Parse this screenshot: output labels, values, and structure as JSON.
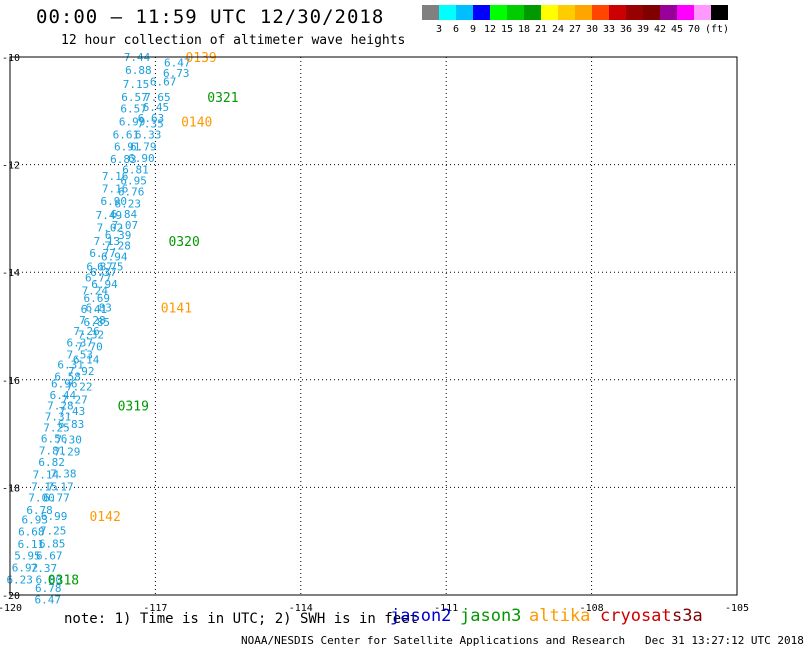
{
  "header": {
    "title": "00:00 – 11:59 UTC 12/30/2018",
    "subtitle": "12 hour collection of altimeter wave heights"
  },
  "colorbar": {
    "colors": [
      "#808080",
      "#00ffff",
      "#00bfff",
      "#0000ff",
      "#00ff00",
      "#00cc00",
      "#009900",
      "#ffff00",
      "#ffcc00",
      "#ffa500",
      "#ff4500",
      "#cc0000",
      "#990000",
      "#800000",
      "#990099",
      "#ff00ff",
      "#ff99ff",
      "#000000"
    ],
    "labels": [
      "3",
      "6",
      "9",
      "12",
      "15",
      "18",
      "21",
      "24",
      "27",
      "30",
      "33",
      "36",
      "39",
      "42",
      "45",
      "70"
    ],
    "unit": "(ft)"
  },
  "note": "note: 1) Time is in UTC; 2) SWH is in feet",
  "satellites": [
    {
      "name": "jason2",
      "color": "#0000cc"
    },
    {
      "name": "jason3",
      "color": "#009900"
    },
    {
      "name": "altika",
      "color": "#ff9900"
    },
    {
      "name": "cryosat",
      "color": "#cc0000"
    },
    {
      "name": "s3a",
      "color": "#800000"
    }
  ],
  "footer": "NOAA/NESDIS Center for Satellite Applications and Research   Dec 31 13:27:12 UTC 2018",
  "chart_data": {
    "type": "scatter",
    "xlim": [
      -120,
      -105
    ],
    "ylim": [
      -20,
      -10
    ],
    "x_ticks": [
      "-120",
      "-117",
      "-114",
      "-111",
      "-108",
      "-105"
    ],
    "x_tick_values": [
      -120,
      -117,
      -114,
      -111,
      -108,
      -105
    ],
    "y_ticks": [
      "-10",
      "-12",
      "-14",
      "-16",
      "-18",
      "-20"
    ],
    "y_tick_values": [
      -10,
      -12,
      -14,
      -16,
      -18,
      -20
    ],
    "grid": true,
    "point_color": "#1a9fdd",
    "points": [
      {
        "x": -117.38,
        "y": -10.0,
        "label": "7.44"
      },
      {
        "x": -116.55,
        "y": -10.1,
        "label": "6.47"
      },
      {
        "x": -117.35,
        "y": -10.24,
        "label": "6.88"
      },
      {
        "x": -116.57,
        "y": -10.3,
        "label": "6.73"
      },
      {
        "x": -116.84,
        "y": -10.46,
        "label": "6.67"
      },
      {
        "x": -117.4,
        "y": -10.5,
        "label": "7.15"
      },
      {
        "x": -117.43,
        "y": -10.74,
        "label": "6.57"
      },
      {
        "x": -116.96,
        "y": -10.74,
        "label": "7.65"
      },
      {
        "x": -117.45,
        "y": -10.96,
        "label": "6.57"
      },
      {
        "x": -116.99,
        "y": -10.93,
        "label": "6.45"
      },
      {
        "x": -117.09,
        "y": -11.13,
        "label": "6.63"
      },
      {
        "x": -117.48,
        "y": -11.2,
        "label": "6.99"
      },
      {
        "x": -117.1,
        "y": -11.24,
        "label": "7.35"
      },
      {
        "x": -117.61,
        "y": -11.44,
        "label": "6.61"
      },
      {
        "x": -117.15,
        "y": -11.44,
        "label": "6.33"
      },
      {
        "x": -117.58,
        "y": -11.66,
        "label": "6.91"
      },
      {
        "x": -117.25,
        "y": -11.66,
        "label": "6.79"
      },
      {
        "x": -117.66,
        "y": -11.9,
        "label": "6.83"
      },
      {
        "x": -117.29,
        "y": -11.88,
        "label": "6.90"
      },
      {
        "x": -117.41,
        "y": -12.09,
        "label": "6.81"
      },
      {
        "x": -117.83,
        "y": -12.21,
        "label": "7.16"
      },
      {
        "x": -117.45,
        "y": -12.3,
        "label": "6.95"
      },
      {
        "x": -117.83,
        "y": -12.44,
        "label": "7.16"
      },
      {
        "x": -117.5,
        "y": -12.5,
        "label": "6.76"
      },
      {
        "x": -117.86,
        "y": -12.68,
        "label": "6.90"
      },
      {
        "x": -117.57,
        "y": -12.72,
        "label": "6.23"
      },
      {
        "x": -117.96,
        "y": -12.94,
        "label": "7.49"
      },
      {
        "x": -117.65,
        "y": -12.92,
        "label": "6.84"
      },
      {
        "x": -117.63,
        "y": -13.12,
        "label": "7.07"
      },
      {
        "x": -117.94,
        "y": -13.17,
        "label": "7.02"
      },
      {
        "x": -117.77,
        "y": -13.31,
        "label": "6.39"
      },
      {
        "x": -118.0,
        "y": -13.42,
        "label": "7.13"
      },
      {
        "x": -117.78,
        "y": -13.5,
        "label": "7.28"
      },
      {
        "x": -118.09,
        "y": -13.64,
        "label": "6.77"
      },
      {
        "x": -117.85,
        "y": -13.71,
        "label": "6.94"
      },
      {
        "x": -118.15,
        "y": -13.89,
        "label": "6.87"
      },
      {
        "x": -117.93,
        "y": -13.89,
        "label": "6.75"
      },
      {
        "x": -118.07,
        "y": -14.0,
        "label": "6.37"
      },
      {
        "x": -118.18,
        "y": -14.1,
        "label": "6.77"
      },
      {
        "x": -118.05,
        "y": -14.22,
        "label": "6.94"
      },
      {
        "x": -118.25,
        "y": -14.34,
        "label": "7.24"
      },
      {
        "x": -118.21,
        "y": -14.48,
        "label": "6.69"
      },
      {
        "x": -118.27,
        "y": -14.68,
        "label": "6.41"
      },
      {
        "x": -118.17,
        "y": -14.66,
        "label": "6.83"
      },
      {
        "x": -118.3,
        "y": -14.89,
        "label": "7.28"
      },
      {
        "x": -118.21,
        "y": -14.93,
        "label": "6.85"
      },
      {
        "x": -118.42,
        "y": -15.09,
        "label": "7.26"
      },
      {
        "x": -118.33,
        "y": -15.16,
        "label": "7.32"
      },
      {
        "x": -118.56,
        "y": -15.31,
        "label": "6.37"
      },
      {
        "x": -118.36,
        "y": -15.38,
        "label": "7.70"
      },
      {
        "x": -118.56,
        "y": -15.53,
        "label": "7.53"
      },
      {
        "x": -118.43,
        "y": -15.62,
        "label": "6.14"
      },
      {
        "x": -118.75,
        "y": -15.72,
        "label": "6.31"
      },
      {
        "x": -118.53,
        "y": -15.84,
        "label": "7.92"
      },
      {
        "x": -118.81,
        "y": -15.94,
        "label": "6.58"
      },
      {
        "x": -118.88,
        "y": -16.07,
        "label": "6.96"
      },
      {
        "x": -118.57,
        "y": -16.12,
        "label": "7.22"
      },
      {
        "x": -118.91,
        "y": -16.28,
        "label": "6.44"
      },
      {
        "x": -118.67,
        "y": -16.37,
        "label": "7.27"
      },
      {
        "x": -118.96,
        "y": -16.48,
        "label": "7.28"
      },
      {
        "x": -118.72,
        "y": -16.58,
        "label": "7.43"
      },
      {
        "x": -119.01,
        "y": -16.68,
        "label": "7.31"
      },
      {
        "x": -118.74,
        "y": -16.82,
        "label": "6.83"
      },
      {
        "x": -119.04,
        "y": -16.89,
        "label": "7.25"
      },
      {
        "x": -119.09,
        "y": -17.09,
        "label": "6.56"
      },
      {
        "x": -118.79,
        "y": -17.11,
        "label": "7.30"
      },
      {
        "x": -119.13,
        "y": -17.31,
        "label": "7.81"
      },
      {
        "x": -118.82,
        "y": -17.33,
        "label": "7.29"
      },
      {
        "x": -119.14,
        "y": -17.53,
        "label": "6.82"
      },
      {
        "x": -119.26,
        "y": -17.76,
        "label": "7.14"
      },
      {
        "x": -118.9,
        "y": -17.74,
        "label": "7.38"
      },
      {
        "x": -119.29,
        "y": -17.98,
        "label": "7.15"
      },
      {
        "x": -118.96,
        "y": -17.98,
        "label": "7.17"
      },
      {
        "x": -119.35,
        "y": -18.19,
        "label": "7.00"
      },
      {
        "x": -119.04,
        "y": -18.19,
        "label": "6.77"
      },
      {
        "x": -119.39,
        "y": -18.42,
        "label": "6.78"
      },
      {
        "x": -119.49,
        "y": -18.6,
        "label": "6.93"
      },
      {
        "x": -119.09,
        "y": -18.53,
        "label": "6.99"
      },
      {
        "x": -119.56,
        "y": -18.82,
        "label": "6.68"
      },
      {
        "x": -119.11,
        "y": -18.8,
        "label": "7.25"
      },
      {
        "x": -119.57,
        "y": -19.05,
        "label": "6.11"
      },
      {
        "x": -119.13,
        "y": -19.04,
        "label": "6.85"
      },
      {
        "x": -119.64,
        "y": -19.27,
        "label": "5.95"
      },
      {
        "x": -119.19,
        "y": -19.27,
        "label": "6.67"
      },
      {
        "x": -119.69,
        "y": -19.49,
        "label": "6.92"
      },
      {
        "x": -119.3,
        "y": -19.5,
        "label": "7.37"
      },
      {
        "x": -119.8,
        "y": -19.71,
        "label": "6.23"
      },
      {
        "x": -119.2,
        "y": -19.71,
        "label": "6.80"
      },
      {
        "x": -119.21,
        "y": -19.87,
        "label": "6.78"
      },
      {
        "x": -119.22,
        "y": -20.08,
        "label": "6.47"
      }
    ],
    "time_labels": [
      {
        "text": "0139",
        "x": -116.38,
        "y": -10.0,
        "color": "#ff9900"
      },
      {
        "text": "0321",
        "x": -115.93,
        "y": -10.74,
        "color": "#009900"
      },
      {
        "text": "0140",
        "x": -116.47,
        "y": -11.2,
        "color": "#ff9900"
      },
      {
        "text": "0320",
        "x": -116.73,
        "y": -13.42,
        "color": "#009900"
      },
      {
        "text": "0141",
        "x": -116.89,
        "y": -14.66,
        "color": "#ff9900"
      },
      {
        "text": "0319",
        "x": -117.78,
        "y": -16.48,
        "color": "#009900"
      },
      {
        "text": "0142",
        "x": -118.36,
        "y": -18.53,
        "color": "#ff9900"
      },
      {
        "text": "0318",
        "x": -119.22,
        "y": -19.71,
        "color": "#009900"
      }
    ]
  }
}
